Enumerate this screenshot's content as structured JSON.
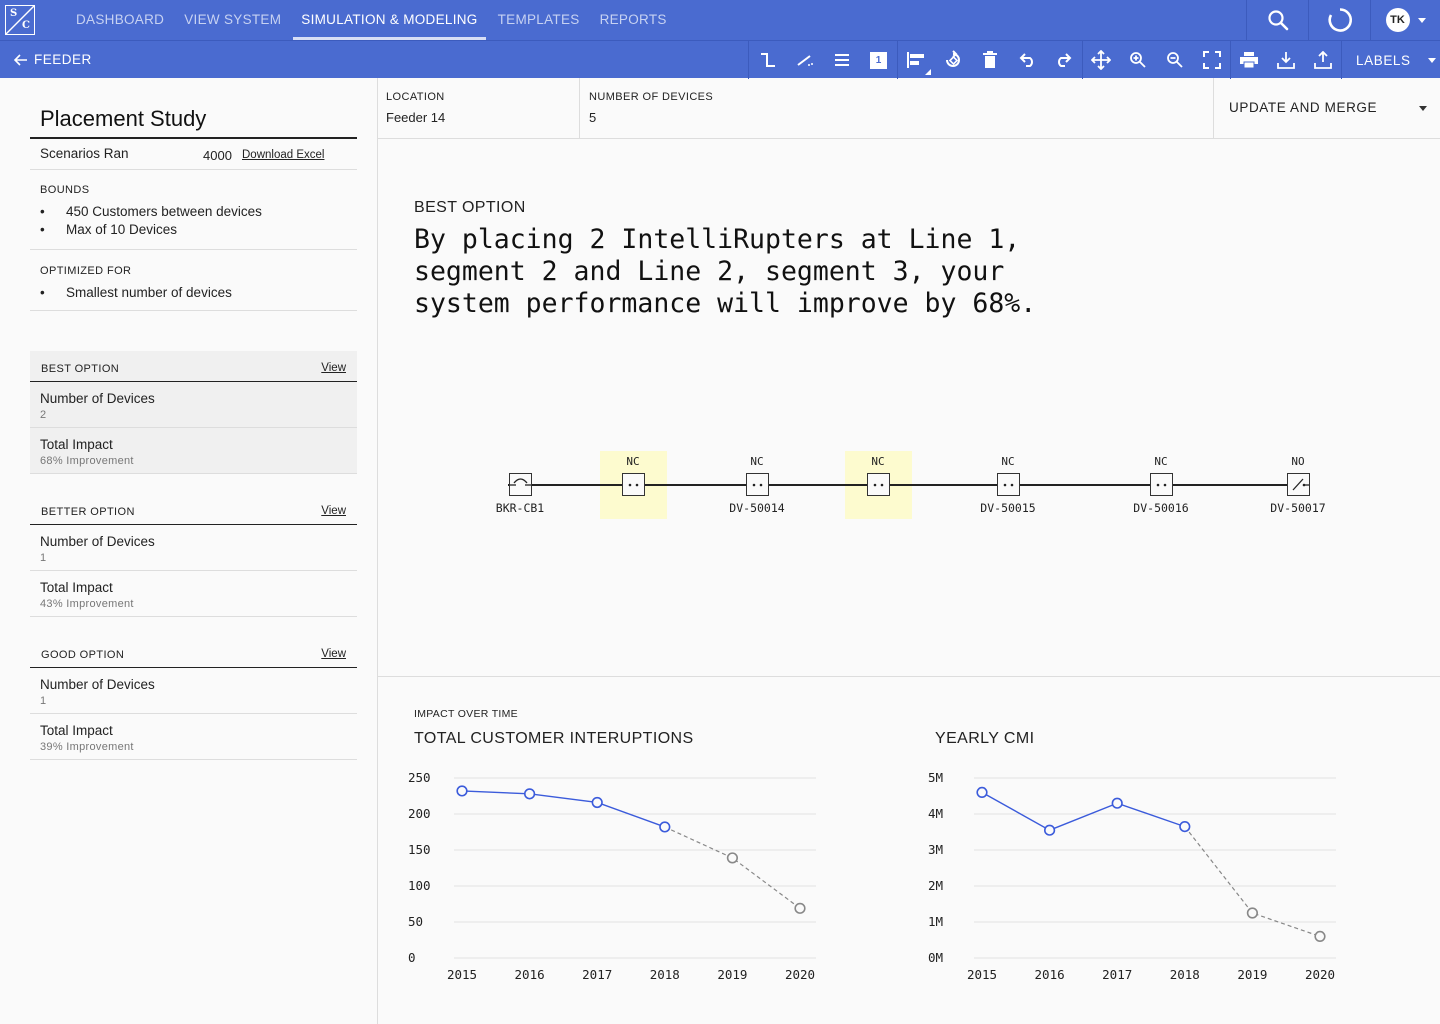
{
  "nav": {
    "logo_top": "S",
    "logo_bottom": "C",
    "tabs": [
      "DASHBOARD",
      "VIEW SYSTEM",
      "SIMULATION & MODELING",
      "TEMPLATES",
      "REPORTS"
    ],
    "active_tab": 2,
    "icons": [
      "search-icon",
      "refresh-icon"
    ],
    "user_initials": "TK"
  },
  "toolbar": {
    "back_label": "FEEDER",
    "tools": [
      "line-segment-icon",
      "line-diagonal-icon",
      "align-lines-icon",
      "number-one-icon",
      "align-left-icon",
      "rotate-icon",
      "trash-icon",
      "undo-icon",
      "redo-icon",
      "move-icon",
      "zoom-in-icon",
      "zoom-out-icon",
      "fullscreen-icon",
      "print-icon",
      "download-icon",
      "upload-icon"
    ],
    "number_badge": "1",
    "labels_label": "LABELS"
  },
  "sidebar": {
    "title": "Placement Study",
    "scenarios_label": "Scenarios Ran",
    "scenarios_value": "4000",
    "download_label": "Download Excel",
    "bounds_heading": "BOUNDS",
    "bounds": [
      "450 Customers between devices",
      "Max of 10 Devices"
    ],
    "optimized_heading": "OPTIMIZED FOR",
    "optimized": [
      "Smallest number of devices"
    ],
    "bullet": "•",
    "options": [
      {
        "title": "BEST OPTION",
        "view": "View",
        "devices_label": "Number of Devices",
        "devices": "2",
        "impact_label": "Total Impact",
        "impact": "68% Improvement"
      },
      {
        "title": "BETTER OPTION",
        "view": "View",
        "devices_label": "Number of Devices",
        "devices": "1",
        "impact_label": "Total Impact",
        "impact": "43% Improvement"
      },
      {
        "title": "GOOD OPTION",
        "view": "View",
        "devices_label": "Number of Devices",
        "devices": "1",
        "impact_label": "Total Impact",
        "impact": "39% Improvement"
      }
    ]
  },
  "main": {
    "location_label": "LOCATION",
    "location_value": "Feeder 14",
    "devices_label": "NUMBER OF DEVICES",
    "devices_value": "5",
    "update_label": "UPDATE AND MERGE",
    "best_heading": "BEST OPTION",
    "best_text": "By placing 2 IntelliRupters at Line 1, segment 2 and Line 2, segment 3, your system performance will improve by 68%.",
    "impact_heading": "IMPACT OVER TIME"
  },
  "diagram": {
    "nodes": [
      {
        "state": "",
        "label": "BKR-CB1",
        "type": "breaker",
        "highlight": false
      },
      {
        "state": "NC",
        "label": "",
        "type": "switch",
        "highlight": true
      },
      {
        "state": "NC",
        "label": "DV-50014",
        "type": "switch",
        "highlight": false
      },
      {
        "state": "NC",
        "label": "",
        "type": "switch",
        "highlight": true
      },
      {
        "state": "NC",
        "label": "DV-50015",
        "type": "switch",
        "highlight": false
      },
      {
        "state": "NC",
        "label": "DV-50016",
        "type": "switch",
        "highlight": false
      },
      {
        "state": "NO",
        "label": "DV-50017",
        "type": "open-switch",
        "highlight": false
      }
    ],
    "highlight_color": "#fdfbcf"
  },
  "chart_data": [
    {
      "type": "line",
      "title": "TOTAL CUSTOMER INTERUPTIONS",
      "x": [
        "2015",
        "2016",
        "2017",
        "2018",
        "2019",
        "2020"
      ],
      "series": [
        {
          "values": [
            232,
            228,
            216,
            182,
            null,
            null
          ],
          "color": "#3b5bdb",
          "style": "solid"
        },
        {
          "values": [
            null,
            null,
            null,
            182,
            139,
            69
          ],
          "color": "#888888",
          "style": "dashed"
        }
      ],
      "y_ticks": [
        "250",
        "200",
        "150",
        "100",
        "50",
        "0"
      ],
      "ylim": [
        0,
        250
      ],
      "grid": true
    },
    {
      "type": "line",
      "title": "YEARLY CMI",
      "x": [
        "2015",
        "2016",
        "2017",
        "2018",
        "2019",
        "2020"
      ],
      "series": [
        {
          "values": [
            4.6,
            3.55,
            4.3,
            3.65,
            null,
            null
          ],
          "color": "#3b5bdb",
          "style": "solid"
        },
        {
          "values": [
            null,
            null,
            null,
            3.65,
            1.25,
            0.6
          ],
          "color": "#888888",
          "style": "dashed"
        }
      ],
      "y_ticks": [
        "5M",
        "4M",
        "3M",
        "2M",
        "1M",
        "0M"
      ],
      "ylim": [
        0,
        5
      ],
      "grid": true
    }
  ]
}
